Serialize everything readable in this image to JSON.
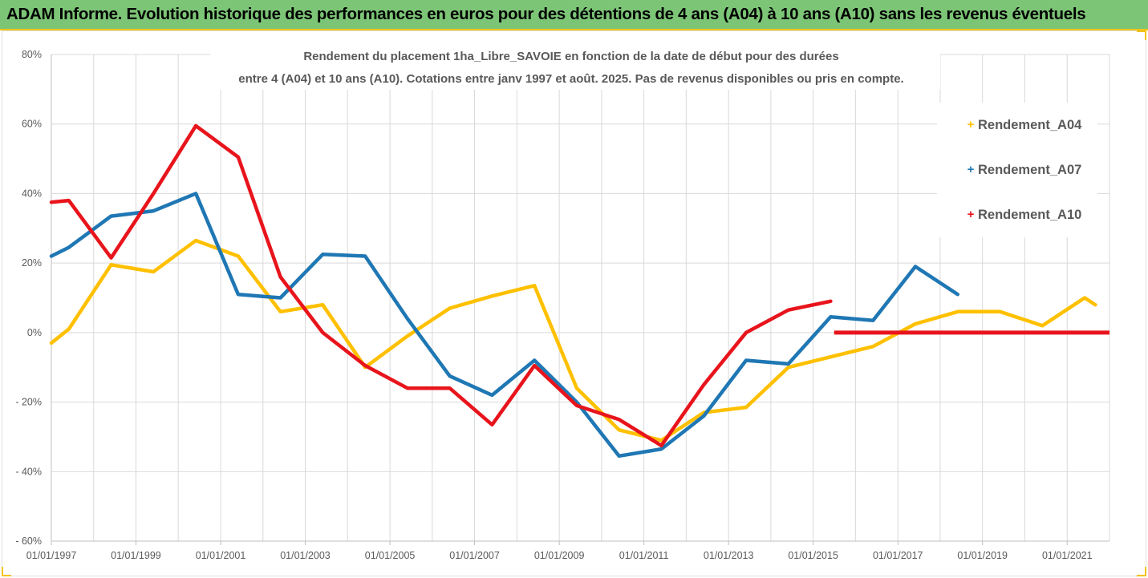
{
  "header": {
    "title": "ADAM Informe. Evolution historique des performances en euros pour des détentions de 4 ans (A04) à 10 ans (A10) sans les revenus éventuels"
  },
  "colors": {
    "banner": "#7cc576",
    "accent": "#f3c21a",
    "A04": "#ffc000",
    "A07": "#1f77b4",
    "A10": "#e8141c",
    "grid": "#d9d9d9"
  },
  "chart_data": {
    "type": "line",
    "title_lines": [
      "Rendement du placement 1ha_Libre_SAVOIE en fonction de la date de début pour des durées",
      "entre 4 (A04) et 10 ans (A10). Cotations entre janv 1997 et août. 2025. Pas de revenus disponibles ou pris en compte."
    ],
    "xlabel": "",
    "ylabel": "",
    "x_tick_labels": [
      "01/01/1997",
      "01/01/1999",
      "01/01/2001",
      "01/01/2003",
      "01/01/2005",
      "01/01/2007",
      "01/01/2009",
      "01/01/2011",
      "01/01/2013",
      "01/01/2015",
      "01/01/2017",
      "01/01/2019",
      "01/01/2021"
    ],
    "y_tick_labels": [
      "80%",
      "60%",
      "40%",
      "20%",
      "0%",
      "- 20%",
      "- 40%",
      "- 60%"
    ],
    "xlim": [
      "1997-01-01",
      "2022-01-01"
    ],
    "ylim": [
      -60,
      80
    ],
    "grid": true,
    "legend_position": "right",
    "series": [
      {
        "name": "Rendement_A04",
        "color": "#ffc000",
        "points": [
          [
            "1997-01-01",
            -3
          ],
          [
            "1997-06-01",
            1
          ],
          [
            "1998-06-01",
            19.5
          ],
          [
            "1999-06-01",
            17.5
          ],
          [
            "2000-06-01",
            26.5
          ],
          [
            "2001-06-01",
            22
          ],
          [
            "2002-06-01",
            6
          ],
          [
            "2003-06-01",
            8
          ],
          [
            "2004-06-01",
            -10
          ],
          [
            "2005-06-01",
            -1
          ],
          [
            "2006-06-01",
            7
          ],
          [
            "2007-06-01",
            10.5
          ],
          [
            "2008-06-01",
            13.5
          ],
          [
            "2009-06-01",
            -16
          ],
          [
            "2010-06-01",
            -28
          ],
          [
            "2011-06-01",
            -31
          ],
          [
            "2012-06-01",
            -23
          ],
          [
            "2013-06-01",
            -21.5
          ],
          [
            "2014-06-01",
            -10
          ],
          [
            "2015-06-01",
            -7
          ],
          [
            "2016-06-01",
            -4
          ],
          [
            "2017-06-01",
            2.5
          ],
          [
            "2018-06-01",
            6
          ],
          [
            "2019-06-01",
            6
          ],
          [
            "2020-06-01",
            2
          ],
          [
            "2021-06-01",
            10
          ],
          [
            "2021-09-01",
            8
          ]
        ]
      },
      {
        "name": "Rendement_A07",
        "color": "#1f77b4",
        "points": [
          [
            "1997-01-01",
            22
          ],
          [
            "1997-06-01",
            24.5
          ],
          [
            "1998-06-01",
            33.5
          ],
          [
            "1999-06-01",
            35
          ],
          [
            "2000-06-01",
            40
          ],
          [
            "2001-06-01",
            11
          ],
          [
            "2002-06-01",
            10
          ],
          [
            "2003-06-01",
            22.5
          ],
          [
            "2004-06-01",
            22
          ],
          [
            "2005-06-01",
            4
          ],
          [
            "2006-06-01",
            -12.5
          ],
          [
            "2007-06-01",
            -18
          ],
          [
            "2008-06-01",
            -8
          ],
          [
            "2009-06-01",
            -20
          ],
          [
            "2010-06-01",
            -35.5
          ],
          [
            "2011-06-01",
            -33.5
          ],
          [
            "2012-06-01",
            -24
          ],
          [
            "2013-06-01",
            -8
          ],
          [
            "2014-06-01",
            -9
          ],
          [
            "2015-06-01",
            4.5
          ],
          [
            "2016-06-01",
            3.5
          ],
          [
            "2017-06-01",
            19
          ],
          [
            "2018-06-01",
            11
          ]
        ]
      },
      {
        "name": "Rendement_A10",
        "color": "#e8141c",
        "points": [
          [
            "1997-01-01",
            37.5
          ],
          [
            "1997-06-01",
            38
          ],
          [
            "1998-06-01",
            21.5
          ],
          [
            "1999-06-01",
            40
          ],
          [
            "2000-06-01",
            59.5
          ],
          [
            "2001-06-01",
            50.5
          ],
          [
            "2002-06-01",
            16
          ],
          [
            "2003-06-01",
            0
          ],
          [
            "2004-06-01",
            -9.5
          ],
          [
            "2005-06-01",
            -16
          ],
          [
            "2006-06-01",
            -16
          ],
          [
            "2007-06-01",
            -26.5
          ],
          [
            "2008-06-01",
            -9.5
          ],
          [
            "2009-06-01",
            -21
          ],
          [
            "2010-06-01",
            -25
          ],
          [
            "2011-06-01",
            -32.5
          ],
          [
            "2012-06-01",
            -15
          ],
          [
            "2013-06-01",
            0
          ],
          [
            "2014-06-01",
            6.5
          ],
          [
            "2015-06-01",
            9
          ]
        ],
        "flat_segment": [
          [
            "2015-07-01",
            0
          ],
          [
            "2022-01-01",
            0
          ]
        ]
      }
    ]
  }
}
